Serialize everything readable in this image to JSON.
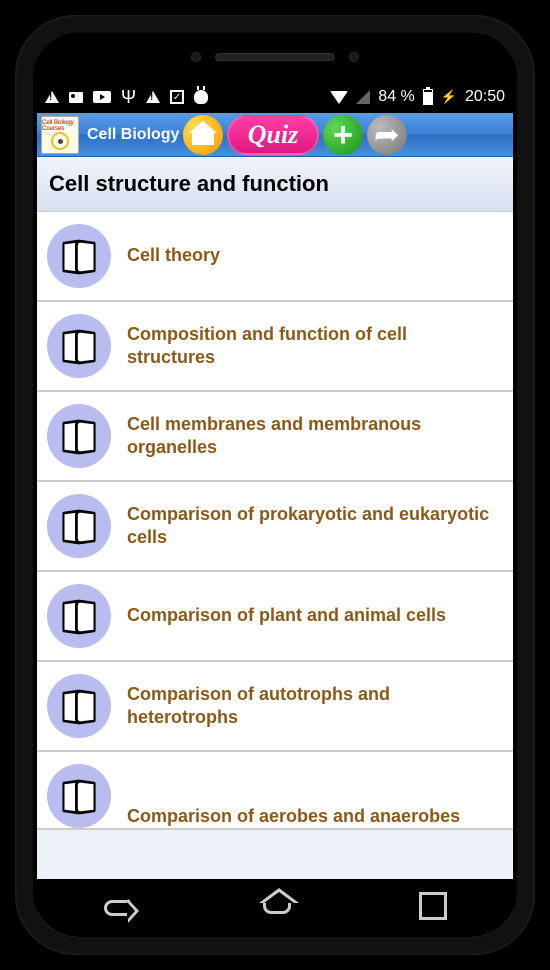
{
  "status": {
    "battery_pct": "84 %",
    "time": "20:50"
  },
  "app": {
    "title": "Cell Biology c",
    "logo_text": "Cell Biology Courses",
    "quiz_label": "Quiz"
  },
  "section": {
    "title": "Cell structure and function"
  },
  "topics": [
    {
      "label": "Cell theory"
    },
    {
      "label": " Composition and function of cell structures"
    },
    {
      "label": " Cell membranes and membranous organelles"
    },
    {
      "label": "Comparison of prokaryotic and eukaryotic cells"
    },
    {
      "label": " Comparison of plant and animal cells"
    },
    {
      "label": " Comparison of autotrophs and heterotrophs"
    },
    {
      "label": " Comparison of aerobes and anaerobes"
    }
  ],
  "colors": {
    "topic_text": "#8a5a1a",
    "appbar_gradient_top": "#5a9ee6",
    "appbar_gradient_bottom": "#2a6fc4",
    "book_icon_bg": "#b9bcee",
    "quiz_bg": "#e01880",
    "home_bg": "#ff9900",
    "plus_bg": "#1a9015"
  }
}
